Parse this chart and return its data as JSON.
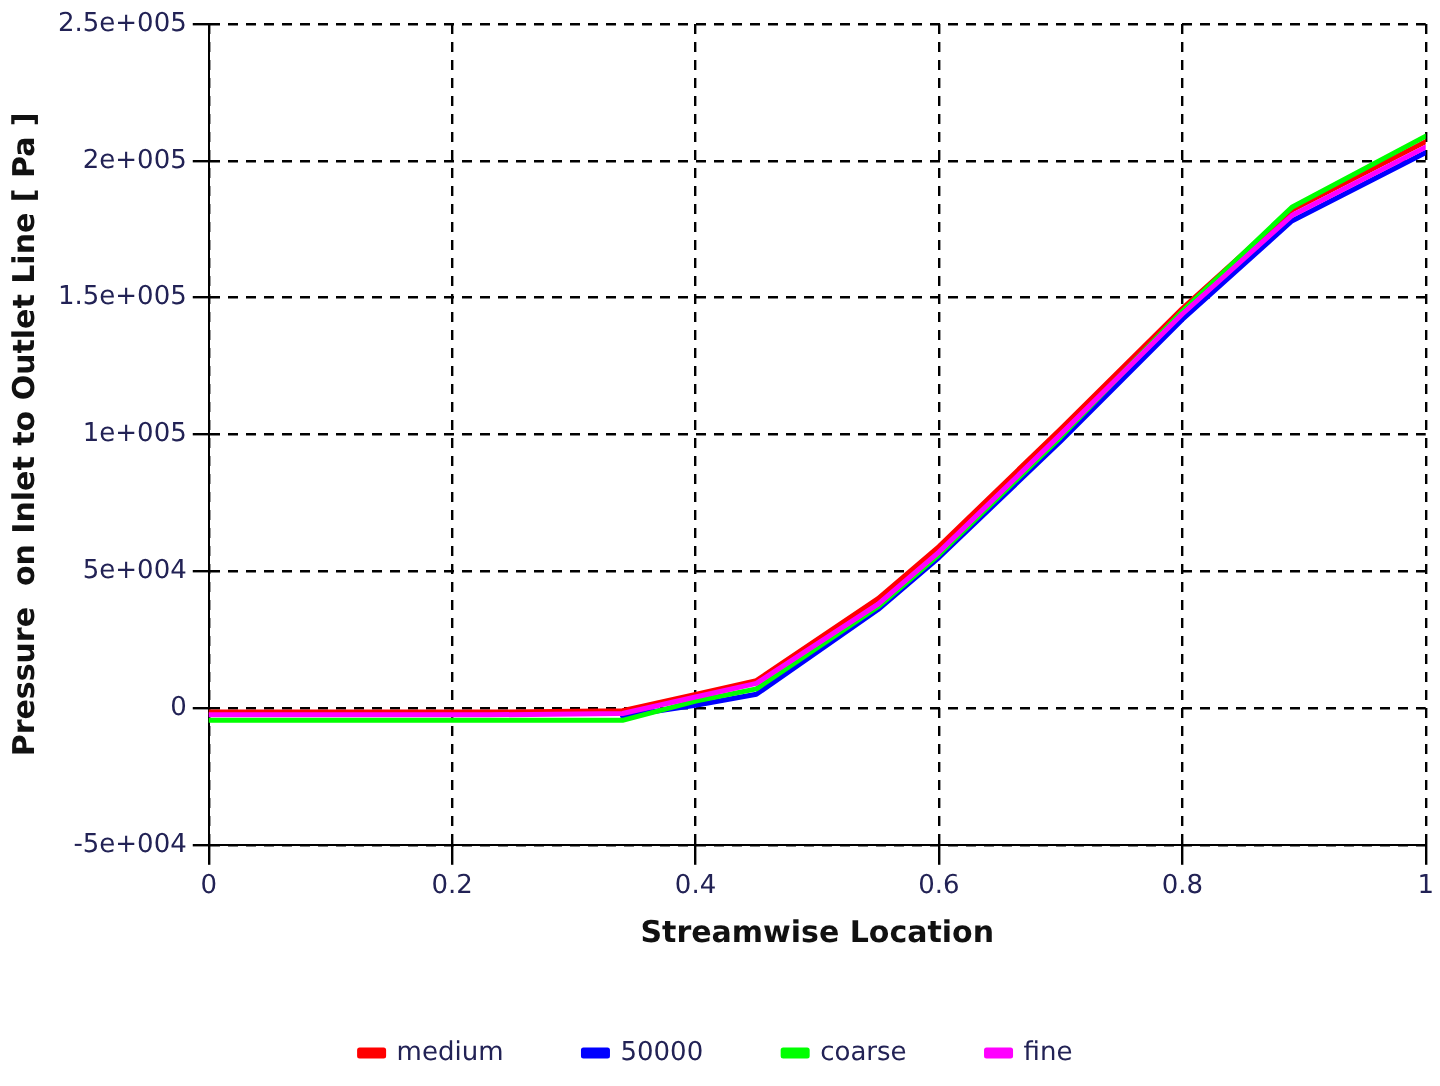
{
  "chart_data": {
    "type": "line",
    "xlabel": "Streamwise Location",
    "ylabel": "Pressure  on Inlet to Outlet Line [ Pa ]",
    "x": [
      0,
      0.1,
      0.2,
      0.23,
      0.34,
      0.4,
      0.45,
      0.55,
      0.6,
      0.7,
      0.8,
      0.89,
      1.0
    ],
    "series": [
      {
        "name": "medium",
        "color": "#ff0000",
        "values": [
          -1500,
          -1500,
          -1500,
          -1500,
          -1000,
          5000,
          10000,
          40000,
          59000,
          102000,
          146000,
          182000,
          207000
        ]
      },
      {
        "name": "50000",
        "color": "#0000ff",
        "values": [
          null,
          null,
          null,
          null,
          -3000,
          1000,
          5000,
          36000,
          55000,
          97500,
          142000,
          178000,
          203000
        ]
      },
      {
        "name": "coarse",
        "color": "#00ff00",
        "values": [
          -4500,
          -4500,
          -4500,
          -4500,
          -4500,
          2500,
          7000,
          37000,
          56000,
          99000,
          145000,
          183000,
          209000
        ]
      },
      {
        "name": "fine",
        "color": "#ff00ff",
        "values": [
          -2500,
          -2500,
          -2500,
          -2500,
          -2000,
          4000,
          9000,
          38000,
          57000,
          100000,
          144000,
          180000,
          205000
        ]
      }
    ],
    "xlim": [
      0,
      1
    ],
    "xticks": [
      0,
      0.2,
      0.4,
      0.6,
      0.8,
      1
    ],
    "ylim": [
      -50000,
      250000
    ],
    "yticks": [
      {
        "value": -50000,
        "label": "-5e+004"
      },
      {
        "value": 0,
        "label": "0"
      },
      {
        "value": 50000,
        "label": "5e+004"
      },
      {
        "value": 100000,
        "label": "1e+005"
      },
      {
        "value": 150000,
        "label": "1.5e+005"
      },
      {
        "value": 200000,
        "label": "2e+005"
      },
      {
        "value": 250000,
        "label": "2.5e+005"
      }
    ],
    "grid": true,
    "legend": "bottom",
    "marker": "none",
    "line_style": "solid"
  }
}
